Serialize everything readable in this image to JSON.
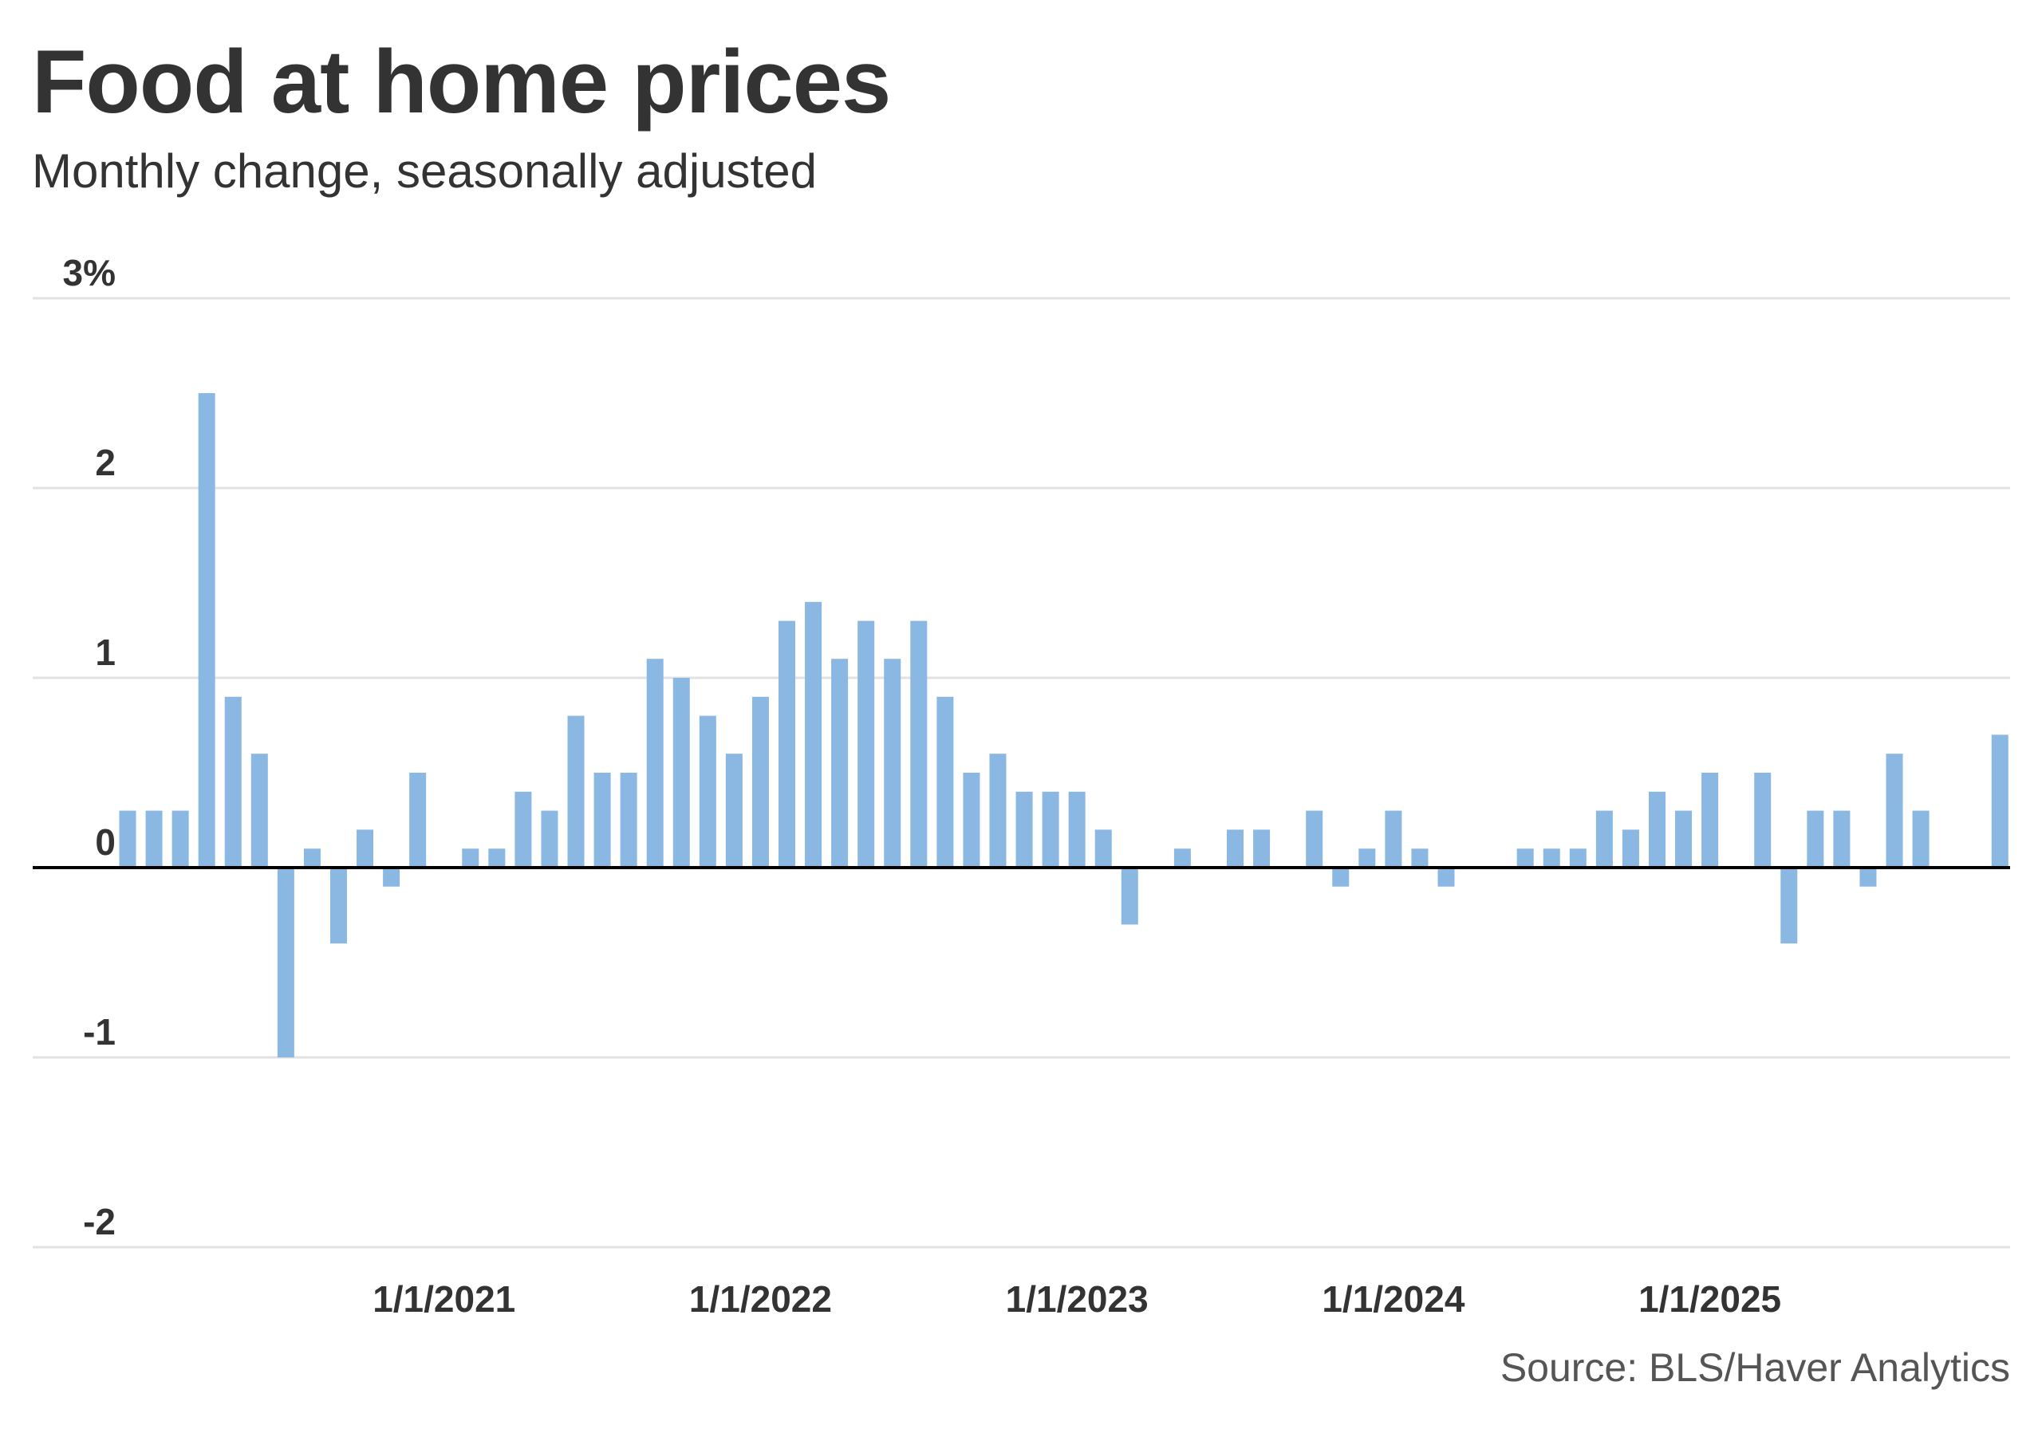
{
  "chart_data": {
    "type": "bar",
    "title": "Food at home prices",
    "subtitle": "Monthly change, seasonally adjusted",
    "source": "Source: BLS/Haver Analytics",
    "x_start": "2020-01",
    "x_frequency": "monthly",
    "x_tick_labels": [
      "1/1/2021",
      "1/1/2022",
      "1/1/2023",
      "1/1/2024",
      "1/1/2025"
    ],
    "x_tick_months": [
      "2021-01",
      "2022-01",
      "2023-01",
      "2024-01",
      "2025-01"
    ],
    "y_tick_labels": [
      "3%",
      "2",
      "1",
      "0",
      "-1",
      "-2"
    ],
    "y_ticks": [
      3,
      2,
      1,
      0,
      -1,
      -2
    ],
    "ylim": [
      -2,
      3
    ],
    "grid": true,
    "bar_color": "#8ab8e2",
    "values": [
      0.3,
      0.3,
      0.3,
      2.5,
      0.9,
      0.6,
      -1.0,
      0.1,
      -0.4,
      0.2,
      -0.1,
      0.5,
      0.0,
      0.1,
      0.1,
      0.4,
      0.3,
      0.8,
      0.5,
      0.5,
      1.1,
      1.0,
      0.8,
      0.6,
      0.9,
      1.3,
      1.4,
      1.1,
      1.3,
      1.1,
      1.3,
      0.9,
      0.5,
      0.6,
      0.4,
      0.4,
      0.4,
      0.2,
      -0.3,
      0.0,
      0.1,
      0.0,
      0.2,
      0.2,
      0.0,
      0.3,
      -0.1,
      0.1,
      0.3,
      0.1,
      -0.1,
      0.0,
      0.0,
      0.1,
      0.1,
      0.1,
      0.3,
      0.2,
      0.4,
      0.3,
      0.5,
      0.0,
      0.5,
      -0.4,
      0.3,
      0.3,
      -0.1,
      0.6,
      0.3,
      null,
      null,
      0.7
    ]
  }
}
